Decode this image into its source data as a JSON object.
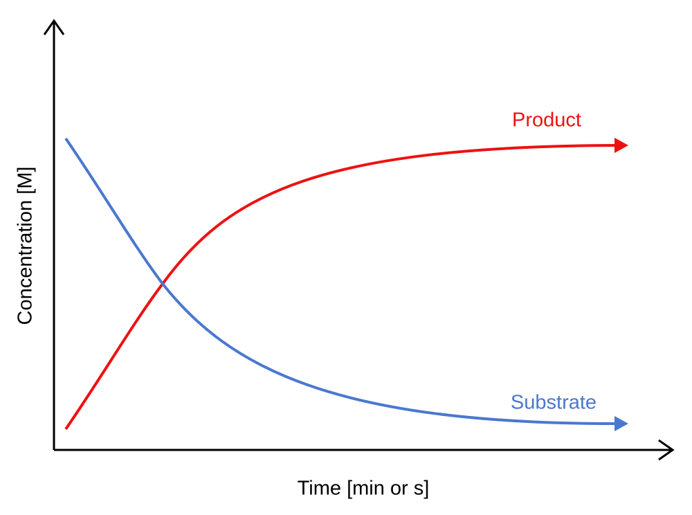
{
  "axes": {
    "x_label": "Time [min or s]",
    "y_label": "Concentration [M]"
  },
  "curves": [
    {
      "label": "Product"
    },
    {
      "label": "Substrate"
    }
  ]
}
